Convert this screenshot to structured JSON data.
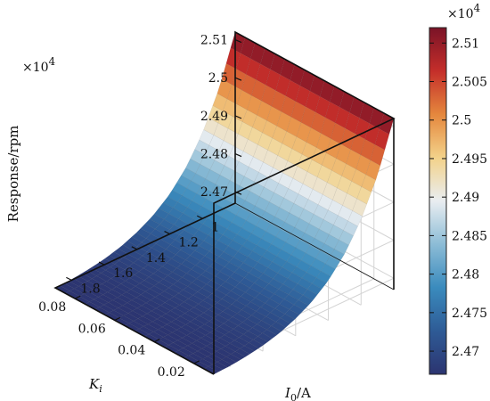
{
  "chart_data": {
    "type": "surface",
    "zlabel": "Response/rpm",
    "x1label_main": "I",
    "x1label_sub": "0",
    "x1label_unit": "/A",
    "x2label_main": "K",
    "x2label_sub": "i",
    "z_multiplier_base": "×10",
    "z_multiplier_exp": "4",
    "colorbar_multiplier_base": "×10",
    "colorbar_multiplier_exp": "4",
    "i0_range": [
      0.8,
      1.9
    ],
    "ki_range": [
      0.01,
      0.09
    ],
    "zlim": [
      2.467,
      2.512
    ],
    "z_ticks": [
      "2.47",
      "2.48",
      "2.49",
      "2.5",
      "2.51"
    ],
    "z_tick_values": [
      2.47,
      2.48,
      2.49,
      2.5,
      2.51
    ],
    "i0_ticks": [
      "1",
      "1.2",
      "1.4",
      "1.6",
      "1.8"
    ],
    "i0_tick_values": [
      1.0,
      1.2,
      1.4,
      1.6,
      1.8
    ],
    "ki_ticks": [
      "0.08",
      "0.06",
      "0.04",
      "0.02"
    ],
    "ki_tick_values": [
      0.08,
      0.06,
      0.04,
      0.02
    ],
    "colorbar_ticks": [
      "2.51",
      "2.505",
      "2.5",
      "2.495",
      "2.49",
      "2.485",
      "2.48",
      "2.475",
      "2.47"
    ],
    "colorbar_tick_values": [
      2.51,
      2.505,
      2.5,
      2.495,
      2.49,
      2.485,
      2.48,
      2.475,
      2.47
    ],
    "surface_profile": {
      "description": "response depends on I0 only, nearly flat at high I0 and rising steeply toward I0 = 0.8",
      "i0": [
        0.8,
        0.9,
        1.0,
        1.1,
        1.2,
        1.3,
        1.4,
        1.5,
        1.6,
        1.7,
        1.8,
        1.9
      ],
      "response": [
        2.512,
        2.499,
        2.4895,
        2.4825,
        2.4775,
        2.474,
        2.4715,
        2.4697,
        2.4685,
        2.4677,
        2.4672,
        2.467
      ]
    },
    "colormap": [
      "#2c3470",
      "#2e5b96",
      "#3a8bbd",
      "#8cbcd6",
      "#e9edf1",
      "#f3d28a",
      "#e5873d",
      "#c42e2a",
      "#7a1327"
    ],
    "grid": true,
    "colorbar": "right"
  }
}
